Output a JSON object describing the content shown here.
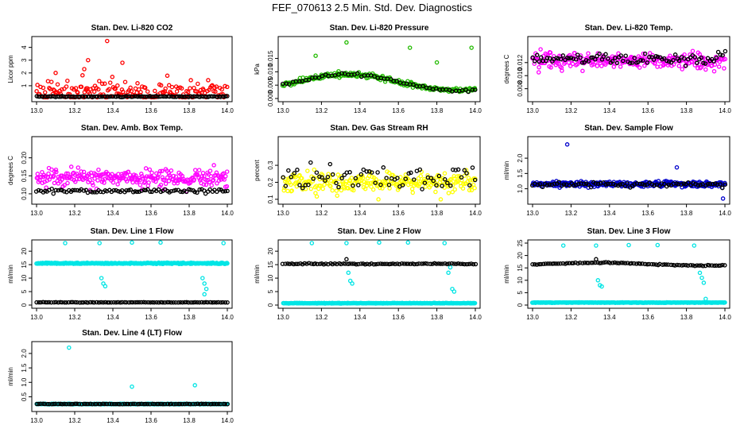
{
  "title": "FEF_070613  2.5 Min. Std. Dev. Diagnostics",
  "chart_data": [
    {
      "type": "scatter",
      "title": "Stan. Dev. Li-820 CO2",
      "ylabel": "Licor ppm",
      "xlim": [
        13.0,
        14.0
      ],
      "ylim": [
        0,
        4.6
      ],
      "xticks": [
        "13.0",
        "13.2",
        "13.4",
        "13.6",
        "13.8",
        "14.0"
      ],
      "yticks": [
        {
          "v": 1,
          "label": "1"
        },
        {
          "v": 2,
          "label": "2"
        },
        {
          "v": 3,
          "label": "3"
        },
        {
          "v": 4,
          "label": "4"
        }
      ],
      "series": [
        {
          "name": "colored",
          "color": "#ff0000",
          "kind": "scatter",
          "base": 0.5,
          "spread": 1.1,
          "lo": 0.1,
          "hi": 4.4,
          "n": 180,
          "seed": 1,
          "outliers": [
            [
              13.37,
              4.5
            ],
            [
              13.27,
              3.0
            ],
            [
              13.25,
              2.3
            ],
            [
              13.1,
              2.0
            ],
            [
              13.45,
              2.8
            ]
          ]
        },
        {
          "name": "black",
          "color": "#000000",
          "kind": "band",
          "base": 0.15,
          "spread": 0.05,
          "lo": 0.05,
          "hi": 0.3,
          "n": 120,
          "seed": 2,
          "outliers": []
        }
      ]
    },
    {
      "type": "scatter",
      "title": "Stan. Dev. Li-820 Pressure",
      "ylabel": "kPa",
      "xlim": [
        13.0,
        14.0
      ],
      "ylim": [
        0,
        0.022
      ],
      "xticks": [
        "13.0",
        "13.2",
        "13.4",
        "13.6",
        "13.8",
        "14.0"
      ],
      "yticks": [
        {
          "v": 0,
          "label": "0.000"
        },
        {
          "v": 0.005,
          "label": "0.005"
        },
        {
          "v": 0.01,
          "label": "0.010"
        },
        {
          "v": 0.015,
          "label": "0.015"
        }
      ],
      "series": [
        {
          "name": "colored",
          "color": "#22bb00",
          "kind": "wave",
          "base": 0.006,
          "amp": 0.003,
          "spread": 0.0015,
          "lo": 0.0003,
          "hi": 0.021,
          "n": 220,
          "seed": 3,
          "outliers": [
            [
              13.33,
              0.021
            ],
            [
              13.66,
              0.019
            ],
            [
              13.98,
              0.019
            ],
            [
              13.17,
              0.016
            ],
            [
              13.8,
              0.0135
            ]
          ]
        },
        {
          "name": "black",
          "color": "#000000",
          "kind": "wave",
          "base": 0.006,
          "amp": 0.003,
          "spread": 0.0008,
          "lo": 0.001,
          "hi": 0.02,
          "n": 60,
          "seed": 4,
          "outliers": []
        }
      ]
    },
    {
      "type": "scatter",
      "title": "Stan. Dev. Li-820 Temp.",
      "ylabel": "degrees C",
      "xlim": [
        13.0,
        14.0
      ],
      "ylim": [
        0.0065,
        0.0155
      ],
      "xticks": [
        "13.0",
        "13.2",
        "13.4",
        "13.6",
        "13.8",
        "14.0"
      ],
      "yticks": [
        {
          "v": 0.008,
          "label": "0.008"
        },
        {
          "v": 0.01,
          "label": "0.010"
        },
        {
          "v": 0.012,
          "label": "0.012"
        }
      ],
      "series": [
        {
          "name": "colored",
          "color": "#ff00ff",
          "kind": "scatter",
          "base": 0.0123,
          "spread": 0.0016,
          "lo": 0.0068,
          "hi": 0.0152,
          "n": 260,
          "seed": 5,
          "outliers": []
        },
        {
          "name": "black",
          "color": "#000000",
          "kind": "scatter",
          "base": 0.0126,
          "spread": 0.0012,
          "lo": 0.009,
          "hi": 0.015,
          "n": 90,
          "seed": 6,
          "outliers": []
        }
      ]
    },
    {
      "type": "scatter",
      "title": "Stan. Dev. Amb. Box Temp.",
      "ylabel": "degrees C",
      "xlim": [
        13.0,
        14.0
      ],
      "ylim": [
        0.08,
        0.25
      ],
      "xticks": [
        "13.0",
        "13.2",
        "13.4",
        "13.6",
        "13.8",
        "14.0"
      ],
      "yticks": [
        {
          "v": 0.1,
          "label": "0.10"
        },
        {
          "v": 0.15,
          "label": "0.15"
        },
        {
          "v": 0.2,
          "label": "0.20"
        }
      ],
      "series": [
        {
          "name": "colored",
          "color": "#ff00ff",
          "kind": "scatter",
          "base": 0.145,
          "spread": 0.03,
          "lo": 0.085,
          "hi": 0.245,
          "n": 260,
          "seed": 7,
          "outliers": []
        },
        {
          "name": "black",
          "color": "#000000",
          "kind": "scatter",
          "base": 0.108,
          "spread": 0.008,
          "lo": 0.09,
          "hi": 0.13,
          "n": 90,
          "seed": 8,
          "outliers": []
        }
      ]
    },
    {
      "type": "scatter",
      "title": "Stan. Dev. Gas Stream RH",
      "ylabel": "percent",
      "xlim": [
        13.0,
        14.0
      ],
      "ylim": [
        0.09,
        0.45
      ],
      "xticks": [
        "13.0",
        "13.2",
        "13.4",
        "13.6",
        "13.8",
        "14.0"
      ],
      "yticks": [
        {
          "v": 0.1,
          "label": "0.1"
        },
        {
          "v": 0.2,
          "label": "0.2"
        },
        {
          "v": 0.3,
          "label": "0.3"
        }
      ],
      "series": [
        {
          "name": "colored",
          "color": "#ffff00",
          "kind": "scatter",
          "base": 0.2,
          "spread": 0.07,
          "lo": 0.1,
          "hi": 0.44,
          "n": 260,
          "seed": 9,
          "outliers": []
        },
        {
          "name": "black",
          "color": "#000000",
          "kind": "scatter",
          "base": 0.22,
          "spread": 0.09,
          "lo": 0.1,
          "hi": 0.44,
          "n": 70,
          "seed": 10,
          "outliers": []
        }
      ]
    },
    {
      "type": "scatter",
      "title": "Stan. Dev. Sample Flow",
      "ylabel": "ml/min",
      "xlim": [
        13.0,
        14.0
      ],
      "ylim": [
        0.6,
        2.6
      ],
      "xticks": [
        "13.0",
        "13.2",
        "13.4",
        "13.6",
        "13.8",
        "14.0"
      ],
      "yticks": [
        {
          "v": 1.0,
          "label": "1.0"
        },
        {
          "v": 1.5,
          "label": "1.5"
        },
        {
          "v": 2.0,
          "label": "2.0"
        }
      ],
      "series": [
        {
          "name": "colored",
          "color": "#0000cc",
          "kind": "scatter",
          "base": 1.15,
          "spread": 0.12,
          "lo": 0.75,
          "hi": 1.8,
          "n": 300,
          "seed": 11,
          "outliers": [
            [
              13.18,
              2.45
            ],
            [
              13.99,
              0.68
            ],
            [
              13.75,
              1.7
            ]
          ]
        },
        {
          "name": "black",
          "color": "#000000",
          "kind": "scatter",
          "base": 1.15,
          "spread": 0.08,
          "lo": 0.9,
          "hi": 1.4,
          "n": 80,
          "seed": 12,
          "outliers": []
        }
      ]
    },
    {
      "type": "scatter",
      "title": "Stan. Dev. Line 1 Flow",
      "ylabel": "ml/min",
      "xlim": [
        13.0,
        14.0
      ],
      "ylim": [
        0,
        23
      ],
      "xticks": [
        "13.0",
        "13.2",
        "13.4",
        "13.6",
        "13.8",
        "14.0"
      ],
      "yticks": [
        {
          "v": 0,
          "label": "0"
        },
        {
          "v": 5,
          "label": "5"
        },
        {
          "v": 10,
          "label": "10"
        },
        {
          "v": 15,
          "label": "15"
        },
        {
          "v": 20,
          "label": "20"
        }
      ],
      "series": [
        {
          "name": "colored",
          "color": "#00e5e5",
          "kind": "band",
          "base": 15.5,
          "spread": 0.35,
          "lo": 14,
          "hi": 17,
          "n": 300,
          "seed": 13,
          "outliers": [
            [
              13.15,
              23
            ],
            [
              13.33,
              23
            ],
            [
              13.5,
              23.2
            ],
            [
              13.65,
              23.2
            ],
            [
              13.98,
              23
            ],
            [
              13.34,
              10
            ],
            [
              13.35,
              8
            ],
            [
              13.36,
              7
            ],
            [
              13.87,
              10
            ],
            [
              13.88,
              8
            ],
            [
              13.88,
              4
            ],
            [
              13.89,
              6
            ]
          ]
        },
        {
          "name": "black",
          "color": "#000000",
          "kind": "band",
          "base": 1.0,
          "spread": 0.1,
          "lo": 0.7,
          "hi": 1.3,
          "n": 90,
          "seed": 14,
          "outliers": []
        }
      ]
    },
    {
      "type": "scatter",
      "title": "Stan. Dev. Line 2 Flow",
      "ylabel": "ml/min",
      "xlim": [
        13.0,
        14.0
      ],
      "ylim": [
        0,
        23
      ],
      "xticks": [
        "13.0",
        "13.2",
        "13.4",
        "13.6",
        "13.8",
        "14.0"
      ],
      "yticks": [
        {
          "v": 0,
          "label": "0"
        },
        {
          "v": 5,
          "label": "5"
        },
        {
          "v": 10,
          "label": "10"
        },
        {
          "v": 15,
          "label": "15"
        },
        {
          "v": 20,
          "label": "20"
        }
      ],
      "series": [
        {
          "name": "colored",
          "color": "#00e5e5",
          "kind": "band",
          "base": 0.7,
          "spread": 0.15,
          "lo": 0.3,
          "hi": 1.2,
          "n": 300,
          "seed": 15,
          "outliers": [
            [
              13.15,
              23
            ],
            [
              13.33,
              23
            ],
            [
              13.5,
              23.2
            ],
            [
              13.65,
              23.2
            ],
            [
              13.84,
              23
            ],
            [
              13.34,
              12
            ],
            [
              13.35,
              9
            ],
            [
              13.36,
              8
            ],
            [
              13.87,
              14
            ],
            [
              13.88,
              6
            ],
            [
              13.89,
              5
            ],
            [
              13.86,
              12
            ]
          ]
        },
        {
          "name": "black",
          "color": "#000000",
          "kind": "band",
          "base": 15.3,
          "spread": 0.3,
          "lo": 14.5,
          "hi": 17.5,
          "n": 90,
          "seed": 16,
          "outliers": [
            [
              13.33,
              17
            ]
          ]
        }
      ]
    },
    {
      "type": "scatter",
      "title": "Stan. Dev. Line 3 Flow",
      "ylabel": "ml/min",
      "xlim": [
        13.0,
        14.0
      ],
      "ylim": [
        0,
        25
      ],
      "xticks": [
        "13.0",
        "13.2",
        "13.4",
        "13.6",
        "13.8",
        "14.0"
      ],
      "yticks": [
        {
          "v": 0,
          "label": "0"
        },
        {
          "v": 5,
          "label": "5"
        },
        {
          "v": 10,
          "label": "10"
        },
        {
          "v": 15,
          "label": "15"
        },
        {
          "v": 20,
          "label": "20"
        },
        {
          "v": 25,
          "label": "25"
        }
      ],
      "series": [
        {
          "name": "colored",
          "color": "#00e5e5",
          "kind": "band",
          "base": 1.0,
          "spread": 0.15,
          "lo": 0.5,
          "hi": 1.5,
          "n": 300,
          "seed": 17,
          "outliers": [
            [
              13.16,
              24
            ],
            [
              13.33,
              24
            ],
            [
              13.5,
              24.2
            ],
            [
              13.65,
              24.2
            ],
            [
              13.84,
              24
            ],
            [
              13.34,
              10
            ],
            [
              13.35,
              8
            ],
            [
              13.36,
              7.5
            ],
            [
              13.87,
              13
            ],
            [
              13.88,
              11
            ],
            [
              13.89,
              9
            ],
            [
              13.9,
              2.5
            ]
          ]
        },
        {
          "name": "black",
          "color": "#000000",
          "kind": "wave",
          "base": 16.5,
          "amp": 0.6,
          "spread": 0.3,
          "lo": 15.5,
          "hi": 18.5,
          "n": 90,
          "seed": 18,
          "outliers": [
            [
              13.33,
              18.5
            ]
          ]
        }
      ]
    },
    {
      "type": "scatter",
      "title": "Stan. Dev. Line 4 (LT) Flow",
      "ylabel": "ml/min",
      "xlim": [
        13.0,
        14.0
      ],
      "ylim": [
        0.1,
        2.3
      ],
      "xticks": [
        "13.0",
        "13.2",
        "13.4",
        "13.6",
        "13.8",
        "14.0"
      ],
      "yticks": [
        {
          "v": 0.5,
          "label": "0.5"
        },
        {
          "v": 1.0,
          "label": "1.0"
        },
        {
          "v": 1.5,
          "label": "1.5"
        },
        {
          "v": 2.0,
          "label": "2.0"
        }
      ],
      "series": [
        {
          "name": "colored",
          "color": "#00e5e5",
          "kind": "band",
          "base": 0.25,
          "spread": 0.015,
          "lo": 0.2,
          "hi": 0.3,
          "n": 300,
          "seed": 19,
          "outliers": [
            [
              13.17,
              2.2
            ],
            [
              13.5,
              0.85
            ],
            [
              13.83,
              0.9
            ]
          ]
        },
        {
          "name": "black",
          "color": "#000000",
          "kind": "band",
          "base": 0.25,
          "spread": 0.01,
          "lo": 0.22,
          "hi": 0.28,
          "n": 90,
          "seed": 20,
          "outliers": []
        }
      ]
    }
  ]
}
